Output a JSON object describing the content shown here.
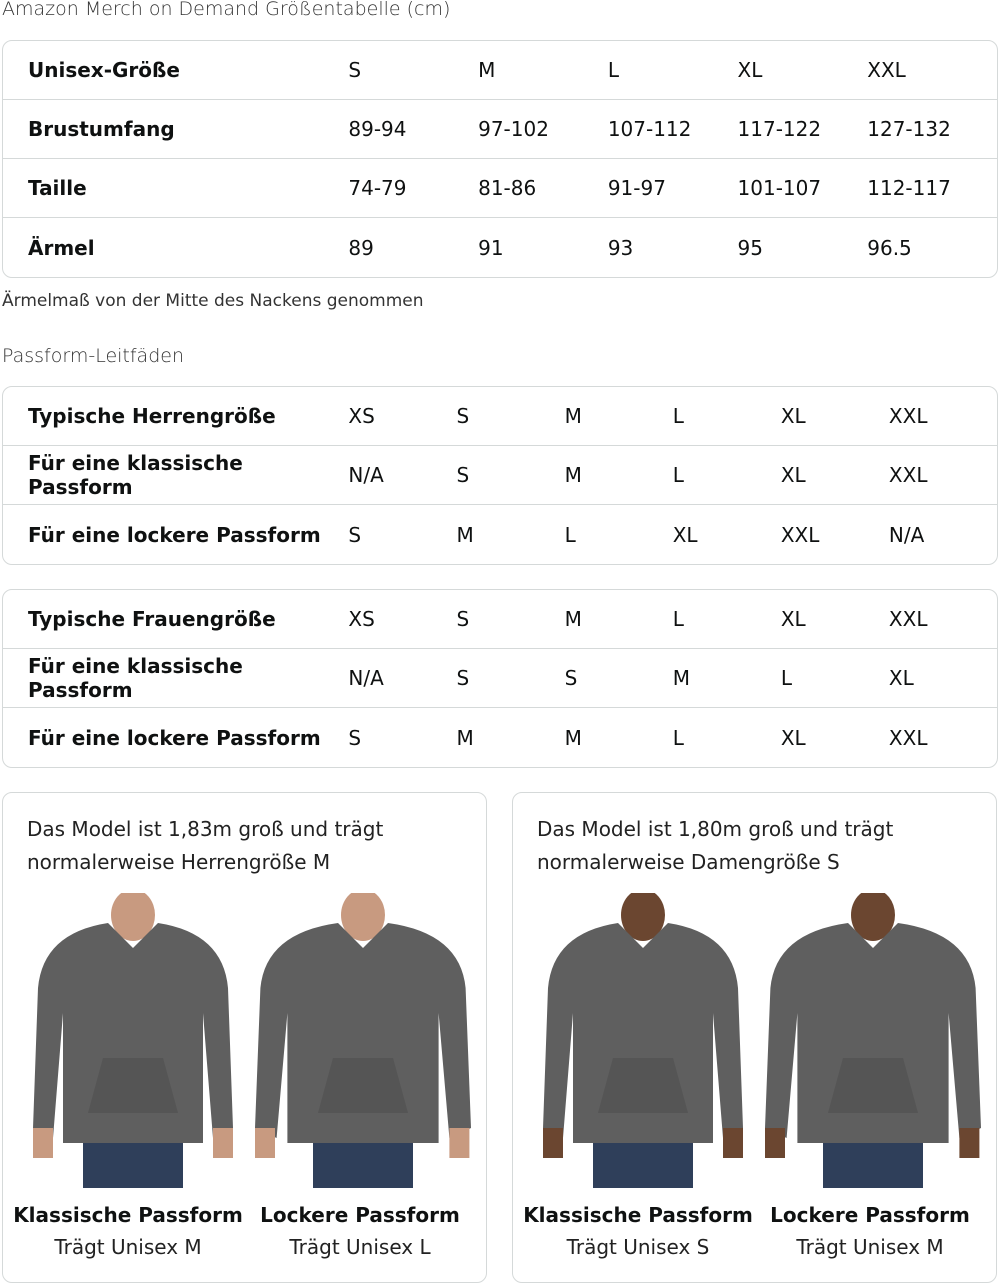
{
  "title": "Amazon Merch on Demand Größentabelle (cm)",
  "size_table": {
    "rows": [
      [
        "Unisex-Größe",
        "S",
        "M",
        "L",
        "XL",
        "XXL"
      ],
      [
        "Brustumfang",
        "89-94",
        "97-102",
        "107-112",
        "117-122",
        "127-132"
      ],
      [
        "Taille",
        "74-79",
        "81-86",
        "91-97",
        "101-107",
        "112-117"
      ],
      [
        "Ärmel",
        "89",
        "91",
        "93",
        "95",
        "96.5"
      ]
    ]
  },
  "note": "Ärmelmaß von der Mitte des Nackens genommen",
  "fit_title": "Passform-Leitfäden",
  "men_fit": {
    "rows": [
      [
        "Typische Herrengröße",
        "XS",
        "S",
        "M",
        "L",
        "XL",
        "XXL"
      ],
      [
        "Für eine klassische Passform",
        "N/A",
        "S",
        "M",
        "L",
        "XL",
        "XXL"
      ],
      [
        "Für eine lockere Passform",
        "S",
        "M",
        "L",
        "XL",
        "XXL",
        "N/A"
      ]
    ]
  },
  "women_fit": {
    "rows": [
      [
        "Typische Frauengröße",
        "XS",
        "S",
        "M",
        "L",
        "XL",
        "XXL"
      ],
      [
        "Für eine klassische Passform",
        "N/A",
        "S",
        "S",
        "M",
        "L",
        "XL"
      ],
      [
        "Für eine lockere Passform",
        "S",
        "M",
        "M",
        "L",
        "XL",
        "XXL"
      ]
    ]
  },
  "cards": [
    {
      "caption_1": "Das Model ist 1,83m groß und trägt",
      "caption_2": "normalerweise Herrengröße M",
      "models": [
        {
          "fit": "Klassische Passform",
          "wears": "Trägt Unisex M"
        },
        {
          "fit": "Lockere Passform",
          "wears": "Trägt Unisex L"
        }
      ]
    },
    {
      "caption_1": "Das Model ist 1,80m groß und trägt",
      "caption_2": "normalerweise Damengröße S",
      "models": [
        {
          "fit": "Klassische Passform",
          "wears": "Trägt Unisex S"
        },
        {
          "fit": "Lockere Passform",
          "wears": "Trägt Unisex M"
        }
      ]
    }
  ],
  "colors": {
    "hoodie": "#5f5f5f",
    "jeans": "#2f3f5a",
    "skin": "#c89a80",
    "skin_dark": "#6b4630",
    "border": "#d5d9d9"
  }
}
